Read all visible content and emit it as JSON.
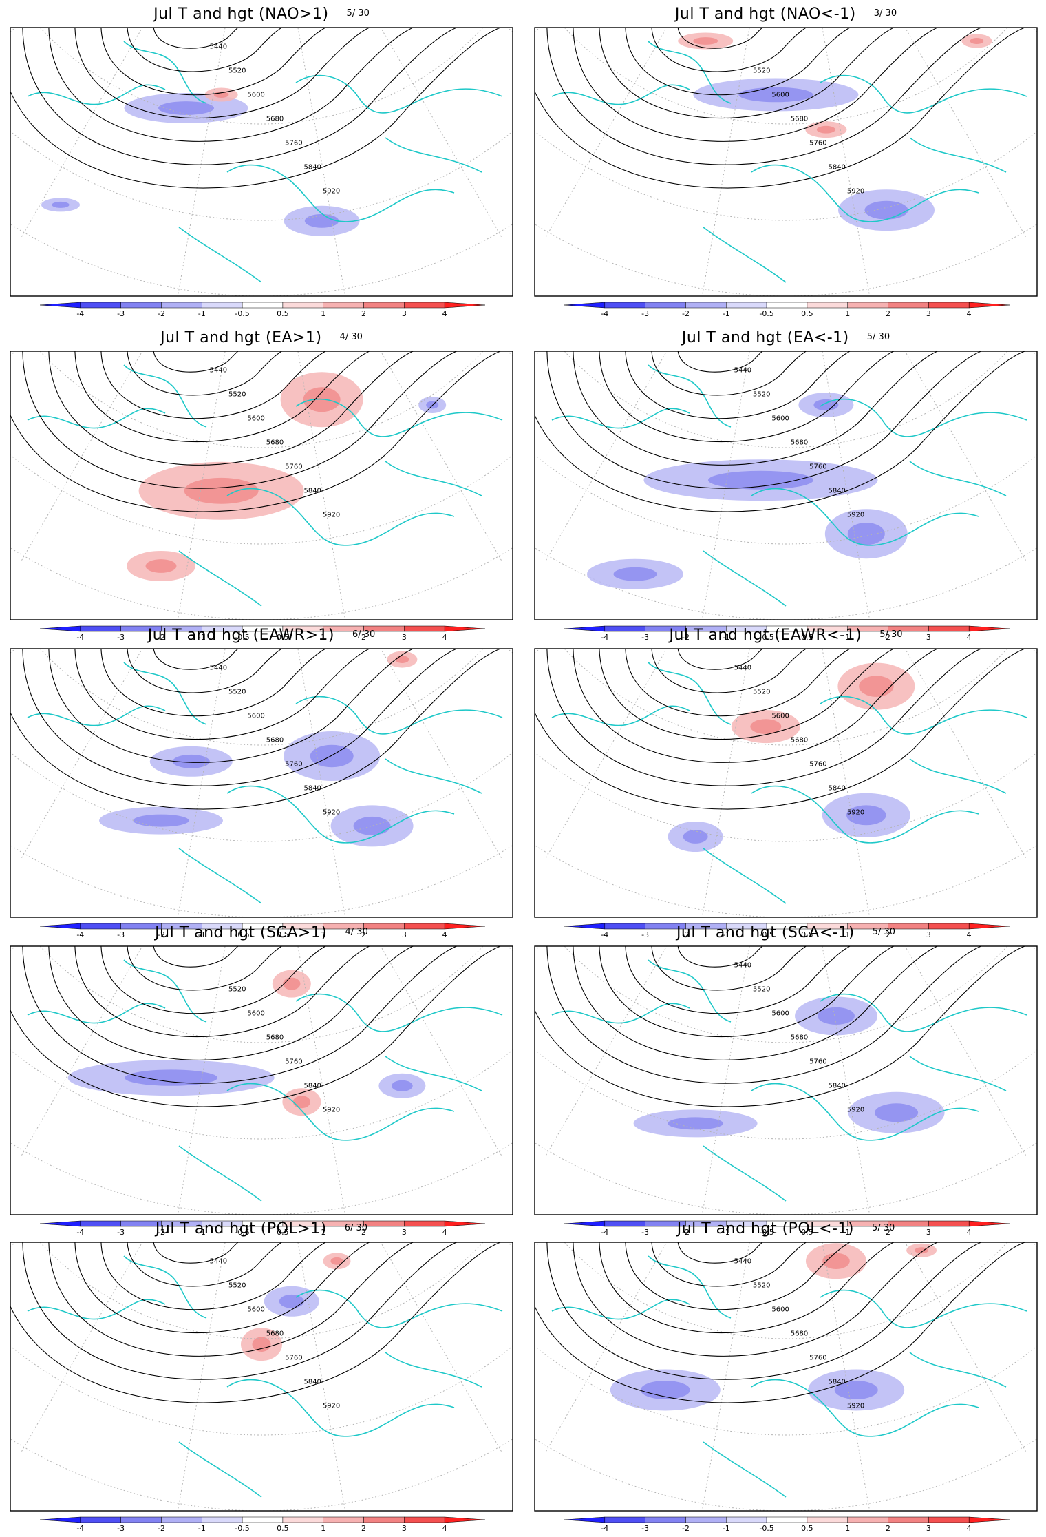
{
  "panel_title_prefix": "Jul T and hgt",
  "panels": [
    {
      "title": "Jul T and hgt (NAO>1)",
      "count": "5/ 30"
    },
    {
      "title": "Jul T and hgt (NAO<-1)",
      "count": "3/ 30"
    },
    {
      "title": "Jul T and hgt (EA>1)",
      "count": "4/ 30"
    },
    {
      "title": "Jul T and hgt (EA<-1)",
      "count": "5/ 30"
    },
    {
      "title": "Jul T and hgt (EAWR>1)",
      "count": "6/ 30"
    },
    {
      "title": "Jul T and hgt (EAWR<-1)",
      "count": "5/ 30"
    },
    {
      "title": "Jul T and hgt (SCA>1)",
      "count": "4/ 30"
    },
    {
      "title": "Jul T and hgt (SCA<-1)",
      "count": "5/ 30"
    },
    {
      "title": "Jul T and hgt (POL>1)",
      "count": "6/ 30"
    },
    {
      "title": "Jul T and hgt (POL<-1)",
      "count": "5/ 30"
    }
  ],
  "contour_labels": [
    "5440",
    "5520",
    "5600",
    "5680",
    "5760",
    "5840",
    "5920"
  ],
  "colorbar": {
    "tick_labels": [
      "-4",
      "-3",
      "-2",
      "-1",
      "-0.5",
      "0.5",
      "1",
      "2",
      "3",
      "4"
    ],
    "colors": [
      "#1f1fff",
      "#4f4ff4",
      "#8282f2",
      "#b0b0f5",
      "#d9d9fa",
      "#ffffff",
      "#fbdada",
      "#f6b1b1",
      "#f28282",
      "#f45050",
      "#ff2020"
    ]
  },
  "colors": {
    "coastline": "#1ec8c8",
    "contour": "#000000",
    "graticule": "#b4b4b4",
    "frame": "#000000"
  }
}
